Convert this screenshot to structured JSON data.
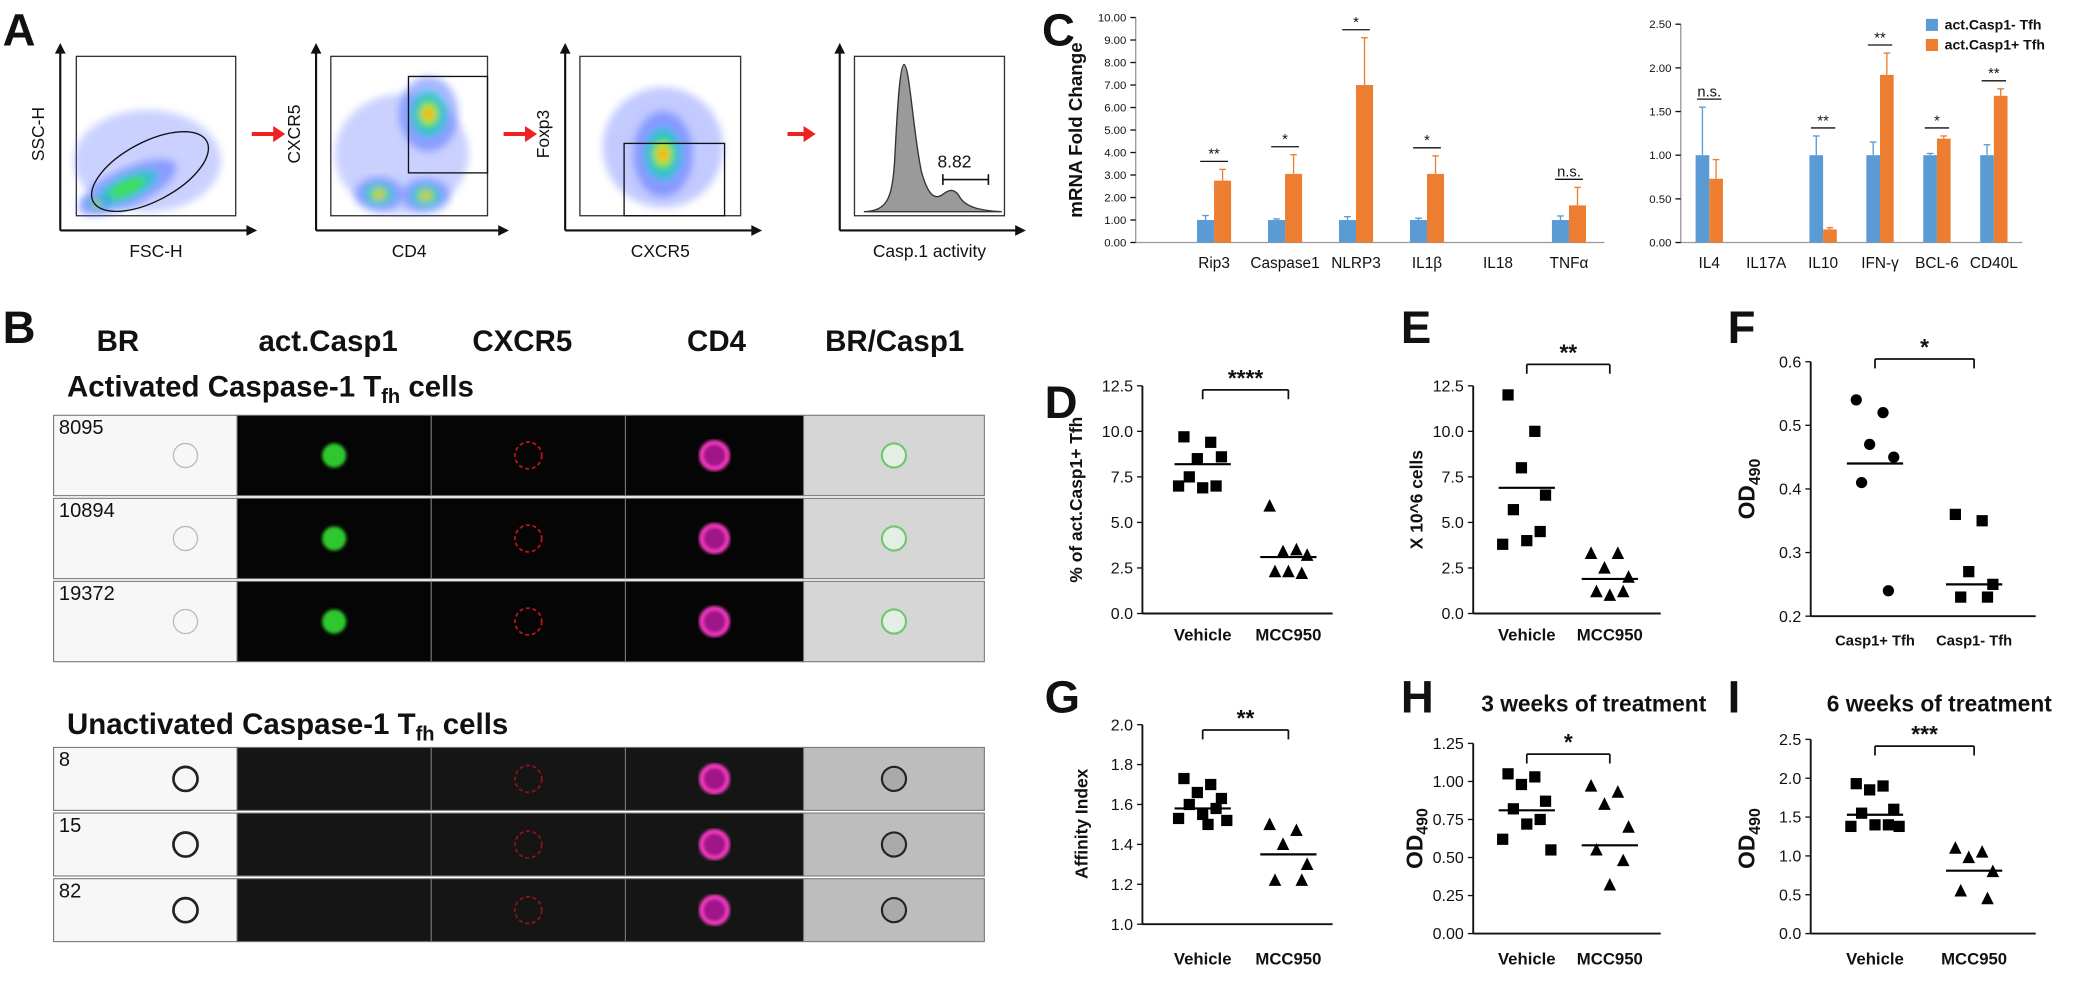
{
  "panel_a": {
    "label": "A",
    "plots": [
      {
        "y_label": "SSC-H",
        "x_label": "FSC-H"
      },
      {
        "y_label": "CXCR5",
        "x_label": "CD4"
      },
      {
        "y_label": "Foxp3",
        "x_label": "CXCR5"
      },
      {
        "x_label": "Casp.1 activity",
        "annotation": "8.82"
      }
    ]
  },
  "panel_b": {
    "label": "B",
    "columns": [
      "BR",
      "act.Casp1",
      "CXCR5",
      "CD4",
      "BR/Casp1"
    ],
    "groups": [
      {
        "title": "Activated Caspase-1 T",
        "title_sub": "fh",
        "title_end": " cells",
        "events": [
          "8095",
          "10894",
          "19372"
        ]
      },
      {
        "title": "Unactivated Caspase-1 T",
        "title_sub": "fh",
        "title_end": " cells",
        "events": [
          "8",
          "15",
          "82"
        ]
      }
    ]
  },
  "chart_data": [
    {
      "panel": "C",
      "type": "bar",
      "y_label": "mRNA Fold Change",
      "categories": [
        "Rip3",
        "Caspase1",
        "NLRP3",
        "IL1β",
        "IL18",
        "TNFα"
      ],
      "series": [
        {
          "color": "#5b9bd5",
          "values": [
            1,
            1,
            1,
            1,
            null,
            1
          ],
          "errors": [
            0.2,
            0.05,
            0.15,
            0.08,
            null,
            0.18
          ]
        },
        {
          "color": "#ed7d31",
          "values": [
            2.75,
            3.05,
            7.0,
            3.05,
            null,
            1.65
          ],
          "errors": [
            0.5,
            0.85,
            2.1,
            0.8,
            null,
            0.8
          ]
        }
      ],
      "significance": [
        "**",
        "*",
        "*",
        "*",
        null,
        "n.s."
      ],
      "ylim": [
        0,
        10
      ],
      "yticks": [
        {
          "value": 0,
          "label": "0.00"
        },
        {
          "value": 1,
          "label": "1.00"
        },
        {
          "value": 2,
          "label": "2.00"
        },
        {
          "value": 3,
          "label": "3.00"
        },
        {
          "value": 4,
          "label": "4.00"
        },
        {
          "value": 5,
          "label": "5.00"
        },
        {
          "value": 6,
          "label": "6.00"
        },
        {
          "value": 7,
          "label": "7.00"
        },
        {
          "value": 8,
          "label": "8.00"
        },
        {
          "value": 9,
          "label": "9.00"
        },
        {
          "value": 10,
          "label": "10.00"
        }
      ]
    },
    {
      "type": "bar",
      "legend": "top-right",
      "categories": [
        "IL4",
        "IL17A",
        "IL10",
        "IFN-γ",
        "BCL-6",
        "CD40L"
      ],
      "series": [
        {
          "name": "act.Casp1- Tfh",
          "color": "#5b9bd5",
          "values": [
            1,
            null,
            1,
            1,
            1,
            1
          ],
          "errors": [
            0.55,
            null,
            0.22,
            0.15,
            0.02,
            0.12
          ]
        },
        {
          "name": "act.Casp1+ Tfh",
          "color": "#ed7d31",
          "values": [
            0.73,
            null,
            0.15,
            1.92,
            1.19,
            1.68
          ],
          "errors": [
            0.22,
            null,
            0.02,
            0.25,
            0.03,
            0.08
          ]
        }
      ],
      "significance": [
        "n.s.",
        null,
        "**",
        "**",
        "*",
        "**"
      ],
      "ylim": [
        0,
        2.5
      ],
      "yticks": [
        {
          "value": 0,
          "label": "0.00"
        },
        {
          "value": 0.5,
          "label": "0.50"
        },
        {
          "value": 1,
          "label": "1.00"
        },
        {
          "value": 1.5,
          "label": "1.50"
        },
        {
          "value": 2,
          "label": "2.00"
        },
        {
          "value": 2.5,
          "label": "2.50"
        }
      ]
    },
    {
      "panel": "D",
      "type": "scatter",
      "y_label": "% of act.Casp1+ Tfh",
      "categories": [
        "Vehicle",
        "MCC950"
      ],
      "markers": [
        "square",
        "triangle"
      ],
      "points": [
        [
          9.7,
          9.4,
          8.5,
          8.6,
          7.5,
          7.0,
          6.9,
          7.0
        ],
        [
          5.9,
          3.5,
          3.4,
          3.2,
          2.3,
          2.2,
          2.3
        ]
      ],
      "means": [
        8.2,
        3.1
      ],
      "significance": "****",
      "ylim": [
        0,
        12.5
      ],
      "yticks": [
        {
          "value": 0,
          "label": "0.0"
        },
        2.5,
        {
          "value": 5,
          "label": "5.0"
        },
        7.5,
        {
          "value": 10,
          "label": "10.0"
        },
        12.5
      ]
    },
    {
      "panel": "E",
      "type": "scatter",
      "y_label": "X 10^6 cells",
      "categories": [
        "Vehicle",
        "MCC950"
      ],
      "markers": [
        "square",
        "triangle"
      ],
      "points": [
        [
          12.0,
          10.0,
          8.0,
          6.5,
          5.7,
          4.5,
          4.0,
          3.8
        ],
        [
          3.3,
          3.3,
          2.5,
          2.0,
          1.2,
          1.2,
          1.0
        ]
      ],
      "means": [
        6.9,
        1.9
      ],
      "significance": "**",
      "ylim": [
        0,
        12.5
      ],
      "yticks": [
        {
          "value": 0,
          "label": "0.0"
        },
        2.5,
        {
          "value": 5,
          "label": "5.0"
        },
        7.5,
        {
          "value": 10,
          "label": "10.0"
        },
        12.5
      ]
    },
    {
      "panel": "F",
      "type": "scatter",
      "y_label": "OD",
      "y_label_sub": "490",
      "categories": [
        "Casp1+ Tfh",
        "Casp1- Tfh"
      ],
      "markers": [
        "circle",
        "square"
      ],
      "points": [
        [
          0.54,
          0.52,
          0.47,
          0.45,
          0.41,
          0.24
        ],
        [
          0.36,
          0.35,
          0.27,
          0.25,
          0.23,
          0.23
        ]
      ],
      "means": [
        0.44,
        0.25
      ],
      "significance": "*",
      "ylim": [
        0.2,
        0.6
      ],
      "yticks": [
        0.2,
        0.3,
        0.4,
        0.5,
        0.6
      ]
    },
    {
      "panel": "G",
      "type": "scatter",
      "y_label": "Affinity Index",
      "categories": [
        "Vehicle",
        "MCC950"
      ],
      "markers": [
        "square",
        "triangle"
      ],
      "points": [
        [
          1.73,
          1.7,
          1.66,
          1.63,
          1.6,
          1.58,
          1.55,
          1.53,
          1.52,
          1.5
        ],
        [
          1.5,
          1.47,
          1.4,
          1.3,
          1.22,
          1.22
        ]
      ],
      "means": [
        1.58,
        1.35
      ],
      "significance": "**",
      "ylim": [
        1.0,
        2.0
      ],
      "yticks": [
        {
          "value": 1,
          "label": "1.0"
        },
        1.2,
        1.4,
        1.6,
        1.8,
        {
          "value": 2,
          "label": "2.0"
        }
      ]
    },
    {
      "panel": "H",
      "type": "scatter",
      "title": "3 weeks of treatment",
      "y_label": "OD",
      "y_label_sub": "490",
      "categories": [
        "Vehicle",
        "MCC950"
      ],
      "markers": [
        "square",
        "triangle"
      ],
      "points": [
        [
          1.05,
          1.03,
          0.98,
          0.87,
          0.82,
          0.75,
          0.72,
          0.62,
          0.55
        ],
        [
          0.97,
          0.93,
          0.85,
          0.7,
          0.55,
          0.48,
          0.32
        ]
      ],
      "means": [
        0.81,
        0.58
      ],
      "significance": "*",
      "ylim": [
        0,
        1.25
      ],
      "yticks": [
        {
          "value": 0,
          "label": "0.00"
        },
        0.25,
        {
          "value": 0.5,
          "label": "0.50"
        },
        0.75,
        {
          "value": 1,
          "label": "1.00"
        },
        1.25
      ]
    },
    {
      "panel": "I",
      "type": "scatter",
      "title": "6 weeks of treatment",
      "y_label": "OD",
      "y_label_sub": "490",
      "categories": [
        "Vehicle",
        "MCC950"
      ],
      "markers": [
        "square",
        "triangle"
      ],
      "points": [
        [
          1.93,
          1.9,
          1.85,
          1.6,
          1.55,
          1.4,
          1.4,
          1.38,
          1.38
        ],
        [
          1.1,
          1.05,
          0.98,
          0.8,
          0.55,
          0.45
        ]
      ],
      "means": [
        1.53,
        0.81
      ],
      "significance": "***",
      "ylim": [
        0,
        2.5
      ],
      "yticks": [
        {
          "value": 0,
          "label": "0.0"
        },
        0.5,
        {
          "value": 1,
          "label": "1.0"
        },
        1.5,
        {
          "value": 2,
          "label": "2.0"
        },
        2.5
      ]
    }
  ]
}
